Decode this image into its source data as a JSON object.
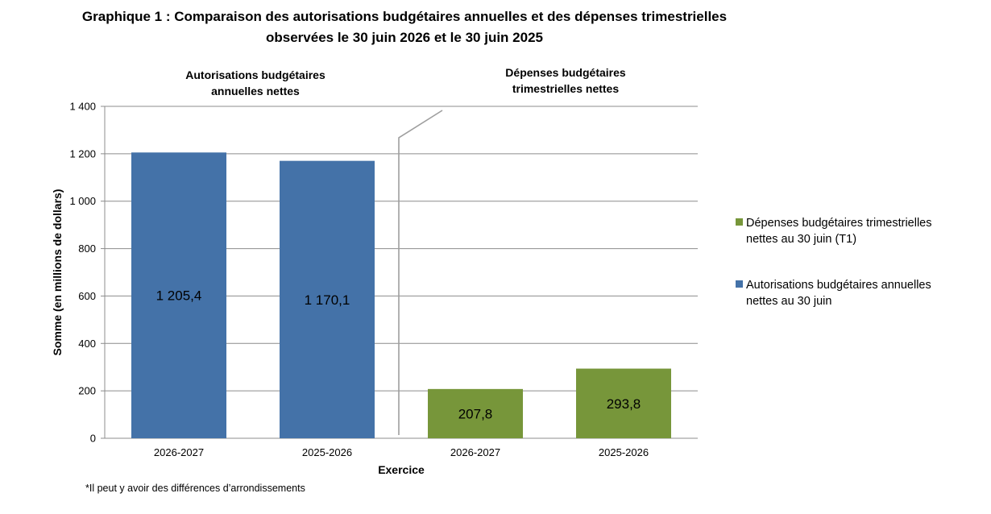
{
  "chart_data": {
    "type": "bar",
    "title": "Graphique 1 : Comparaison des autorisations budgétaires annuelles et des dépenses trimestrielles",
    "title_line2": "observées le 30 juin 2026 et le 30 juin 2025",
    "ylabel": "Somme (en millions de dollars)",
    "xlabel": "Exercice",
    "ylim": [
      0,
      1400
    ],
    "ytick_values": [
      0,
      200,
      400,
      600,
      800,
      1000,
      1200,
      1400
    ],
    "ytick_labels": [
      "0",
      "200",
      "400",
      "600",
      "800",
      "1 000",
      "1 200",
      "1 400"
    ],
    "categories": [
      "2026-2027",
      "2025-2026",
      "2026-2027",
      "2025-2026"
    ],
    "groups": [
      {
        "label_line1": "Autorisations budgétaires",
        "label_line2": "annuelles nettes"
      },
      {
        "label_line1": "Dépenses budgétaires",
        "label_line2": "trimestrielles nettes"
      }
    ],
    "bars": [
      {
        "category": "2026-2027",
        "value": 1205.4,
        "label": "1 205,4",
        "series": 1
      },
      {
        "category": "2025-2026",
        "value": 1170.1,
        "label": "1 170,1",
        "series": 1
      },
      {
        "category": "2026-2027",
        "value": 207.8,
        "label": "207,8",
        "series": 0
      },
      {
        "category": "2025-2026",
        "value": 293.8,
        "label": "293,8",
        "series": 0
      }
    ],
    "series": [
      {
        "name_line1": "Dépenses budgétaires trimestrielles",
        "name_line2": "nettes au 30 juin (T1)",
        "color": "#77963A"
      },
      {
        "name_line1": "Autorisations budgétaires annuelles",
        "name_line2": "nettes au 30 juin",
        "color": "#4472A8"
      }
    ],
    "grid": true,
    "legend_position": "right",
    "note": "*Il peut y avoir des différences d’arrondissements"
  }
}
